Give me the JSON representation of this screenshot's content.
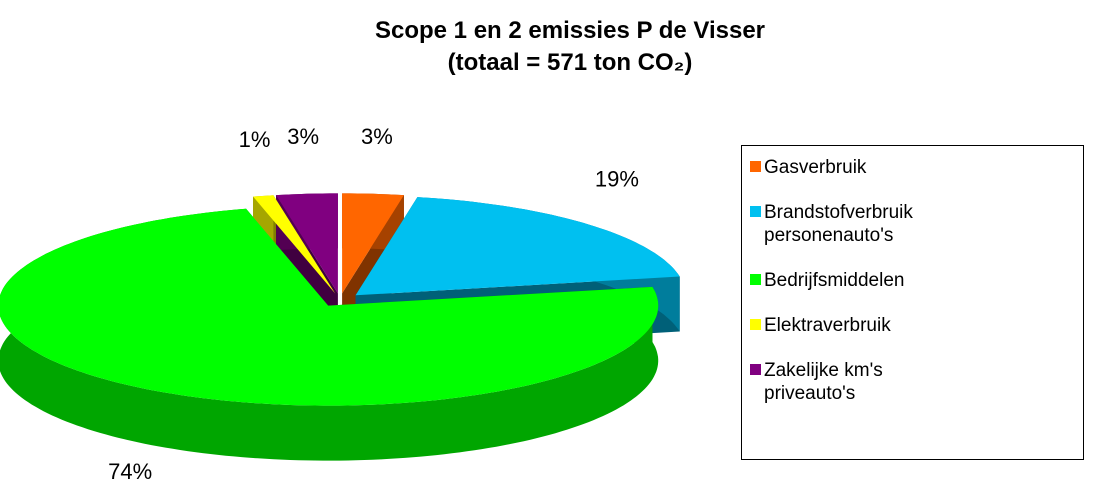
{
  "chart_data": {
    "type": "pie3d",
    "title": [
      "Scope 1 en 2 emissies P de Visser",
      "(totaal =  571 ton CO₂)"
    ],
    "categories": [
      "Gasverbruik",
      "Brandstofverbruik personenauto's",
      "Bedrijfsmiddelen",
      "Elektraverbruik",
      "Zakelijke km's priveauto's"
    ],
    "values": [
      3,
      19,
      74,
      1,
      3
    ],
    "value_labels": [
      "3%",
      "19%",
      "74%",
      "1%",
      "3%"
    ],
    "colors": [
      "#ff6600",
      "#00c0f0",
      "#00ff00",
      "#ffff00",
      "#800080"
    ],
    "legend": "right"
  }
}
